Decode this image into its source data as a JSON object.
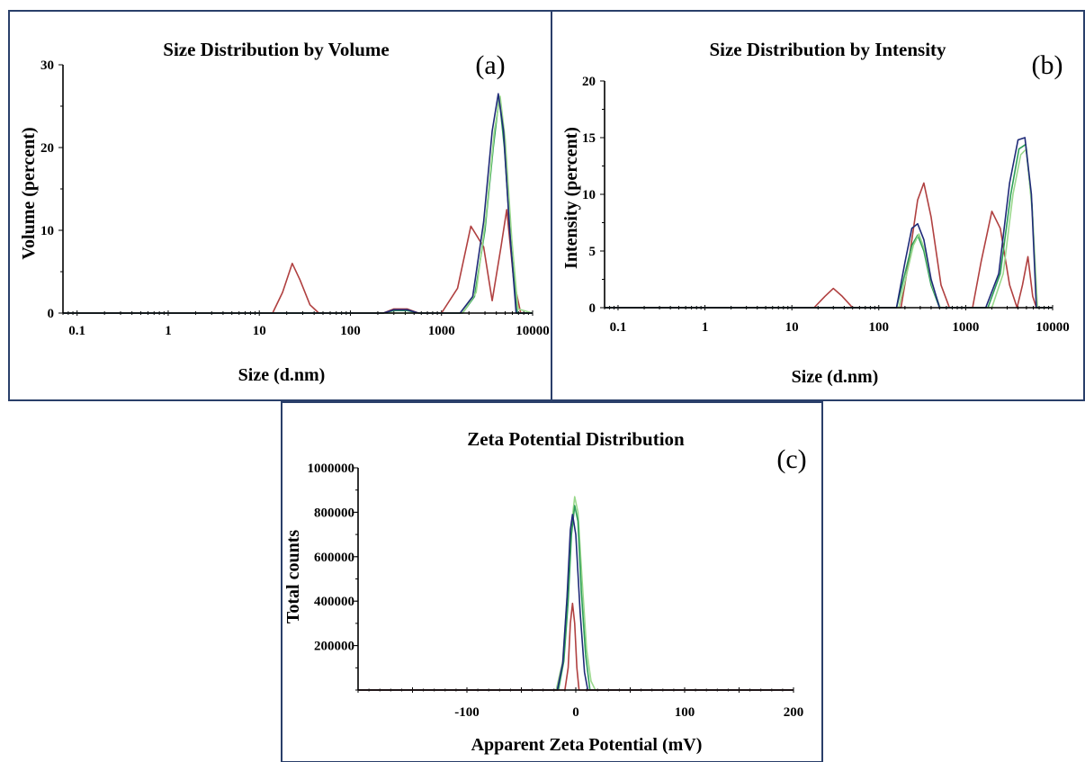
{
  "chart_data": [
    {
      "id": "a",
      "type": "line",
      "panel_label": "(a)",
      "title": "Size Distribution by Volume",
      "xlabel": "Size (d.nm)",
      "ylabel": "Volume  (percent)",
      "xscale": "log",
      "xlim": [
        0.07,
        10000
      ],
      "ylim": [
        0,
        30
      ],
      "xticks": [
        {
          "v": 0.1,
          "label": "0.1"
        },
        {
          "v": 1,
          "label": "1"
        },
        {
          "v": 10,
          "label": "10"
        },
        {
          "v": 100,
          "label": "100"
        },
        {
          "v": 1000,
          "label": "1000"
        },
        {
          "v": 10000,
          "label": "10000"
        }
      ],
      "yticks": [
        {
          "v": 0,
          "label": "0"
        },
        {
          "v": 10,
          "label": "10"
        },
        {
          "v": 20,
          "label": "20"
        },
        {
          "v": 30,
          "label": "30"
        }
      ],
      "series": [
        {
          "color": "#b04040",
          "points": [
            [
              0.07,
              0
            ],
            [
              14,
              0
            ],
            [
              18,
              2.5
            ],
            [
              23,
              6
            ],
            [
              28,
              4
            ],
            [
              36,
              1
            ],
            [
              45,
              0
            ],
            [
              230,
              0
            ],
            [
              300,
              0.5
            ],
            [
              420,
              0.5
            ],
            [
              560,
              0
            ],
            [
              1000,
              0
            ],
            [
              1500,
              3
            ],
            [
              2100,
              10.5
            ],
            [
              2900,
              8
            ],
            [
              3600,
              1.5
            ],
            [
              4500,
              8
            ],
            [
              5200,
              12.5
            ],
            [
              6200,
              4
            ],
            [
              7400,
              0
            ],
            [
              10000,
              0
            ]
          ]
        },
        {
          "color": "#2e9e58",
          "points": [
            [
              0.07,
              0
            ],
            [
              230,
              0
            ],
            [
              300,
              0.3
            ],
            [
              420,
              0.3
            ],
            [
              560,
              0
            ],
            [
              1700,
              0
            ],
            [
              2300,
              2
            ],
            [
              3000,
              10
            ],
            [
              3700,
              20
            ],
            [
              4300,
              26
            ],
            [
              4900,
              20
            ],
            [
              5800,
              8
            ],
            [
              6800,
              0
            ],
            [
              10000,
              0
            ]
          ]
        },
        {
          "color": "#9ad88c",
          "points": [
            [
              0.07,
              0
            ],
            [
              1700,
              0
            ],
            [
              2400,
              2.5
            ],
            [
              3100,
              12
            ],
            [
              3800,
              22
            ],
            [
              4400,
              26.2
            ],
            [
              5000,
              21
            ],
            [
              5900,
              9
            ],
            [
              6900,
              0.5
            ],
            [
              10000,
              0
            ]
          ]
        },
        {
          "color": "#1f2a78",
          "points": [
            [
              0.07,
              0
            ],
            [
              230,
              0
            ],
            [
              300,
              0.4
            ],
            [
              420,
              0.4
            ],
            [
              560,
              0
            ],
            [
              1600,
              0
            ],
            [
              2200,
              2
            ],
            [
              2900,
              11
            ],
            [
              3600,
              22
            ],
            [
              4200,
              26.5
            ],
            [
              4800,
              22
            ],
            [
              5600,
              10
            ],
            [
              6600,
              0
            ],
            [
              10000,
              0
            ]
          ]
        }
      ]
    },
    {
      "id": "b",
      "type": "line",
      "panel_label": "(b)",
      "title": "Size Distribution by Intensity",
      "xlabel": "Size (d.nm)",
      "ylabel": "Intensity  (percent)",
      "xscale": "log",
      "xlim": [
        0.07,
        10000
      ],
      "ylim": [
        0,
        20
      ],
      "xticks": [
        {
          "v": 0.1,
          "label": "0.1"
        },
        {
          "v": 1,
          "label": "1"
        },
        {
          "v": 10,
          "label": "10"
        },
        {
          "v": 100,
          "label": "100"
        },
        {
          "v": 1000,
          "label": "1000"
        },
        {
          "v": 10000,
          "label": "10000"
        }
      ],
      "yticks": [
        {
          "v": 0,
          "label": "0"
        },
        {
          "v": 5,
          "label": "5"
        },
        {
          "v": 10,
          "label": "10"
        },
        {
          "v": 15,
          "label": "15"
        },
        {
          "v": 20,
          "label": "20"
        }
      ],
      "series": [
        {
          "color": "#b04040",
          "points": [
            [
              0.07,
              0
            ],
            [
              18,
              0
            ],
            [
              24,
              1
            ],
            [
              30,
              1.7
            ],
            [
              38,
              1
            ],
            [
              50,
              0
            ],
            [
              180,
              0
            ],
            [
              220,
              4
            ],
            [
              280,
              9.5
            ],
            [
              330,
              11
            ],
            [
              400,
              8
            ],
            [
              520,
              2
            ],
            [
              650,
              0
            ],
            [
              1200,
              0
            ],
            [
              1500,
              4
            ],
            [
              2000,
              8.5
            ],
            [
              2500,
              7
            ],
            [
              3200,
              2
            ],
            [
              3900,
              0
            ],
            [
              4500,
              2
            ],
            [
              5200,
              4.5
            ],
            [
              5900,
              1
            ],
            [
              6500,
              0
            ],
            [
              10000,
              0
            ]
          ]
        },
        {
          "color": "#2e9e58",
          "points": [
            [
              0.07,
              0
            ],
            [
              160,
              0
            ],
            [
              200,
              3
            ],
            [
              240,
              5.5
            ],
            [
              280,
              6.4
            ],
            [
              330,
              5
            ],
            [
              400,
              2
            ],
            [
              500,
              0
            ],
            [
              1800,
              0
            ],
            [
              2500,
              3
            ],
            [
              3300,
              10
            ],
            [
              4100,
              14
            ],
            [
              4900,
              14.4
            ],
            [
              5800,
              9
            ],
            [
              6600,
              0
            ],
            [
              10000,
              0
            ]
          ]
        },
        {
          "color": "#9ad88c",
          "points": [
            [
              0.07,
              0
            ],
            [
              170,
              0
            ],
            [
              210,
              3
            ],
            [
              250,
              5.5
            ],
            [
              290,
              6.5
            ],
            [
              340,
              5
            ],
            [
              410,
              2
            ],
            [
              510,
              0
            ],
            [
              2000,
              0
            ],
            [
              2700,
              3
            ],
            [
              3500,
              10
            ],
            [
              4300,
              13.5
            ],
            [
              5000,
              14
            ],
            [
              5900,
              8
            ],
            [
              6700,
              0
            ],
            [
              10000,
              0
            ]
          ]
        },
        {
          "color": "#1f2a78",
          "points": [
            [
              0.07,
              0
            ],
            [
              160,
              0
            ],
            [
              200,
              4
            ],
            [
              240,
              7
            ],
            [
              280,
              7.4
            ],
            [
              330,
              6
            ],
            [
              400,
              2.5
            ],
            [
              500,
              0
            ],
            [
              1700,
              0
            ],
            [
              2400,
              3
            ],
            [
              3200,
              11
            ],
            [
              4000,
              14.8
            ],
            [
              4800,
              15
            ],
            [
              5700,
              10
            ],
            [
              6500,
              0
            ],
            [
              10000,
              0
            ]
          ]
        }
      ]
    },
    {
      "id": "c",
      "type": "line",
      "panel_label": "(c)",
      "title": "Zeta Potential Distribution",
      "xlabel": "Apparent  Zeta Potential (mV)",
      "ylabel": "Total counts",
      "xscale": "linear",
      "xlim": [
        -200,
        200
      ],
      "ylim": [
        0,
        1000000
      ],
      "xticks": [
        {
          "v": -100,
          "label": "-100"
        },
        {
          "v": 0,
          "label": "0"
        },
        {
          "v": 100,
          "label": "100"
        },
        {
          "v": 200,
          "label": "200"
        }
      ],
      "yticks": [
        {
          "v": 200000,
          "label": "200000"
        },
        {
          "v": 400000,
          "label": "400000"
        },
        {
          "v": 600000,
          "label": "600000"
        },
        {
          "v": 800000,
          "label": "800000"
        },
        {
          "v": 1000000,
          "label": "1000000"
        }
      ],
      "series": [
        {
          "color": "#9ad88c",
          "points": [
            [
              -200,
              0
            ],
            [
              -18,
              0
            ],
            [
              -12,
              130000
            ],
            [
              -8,
              420000
            ],
            [
              -4,
              740000
            ],
            [
              -1,
              870000
            ],
            [
              2,
              800000
            ],
            [
              6,
              480000
            ],
            [
              10,
              180000
            ],
            [
              14,
              40000
            ],
            [
              18,
              0
            ],
            [
              200,
              0
            ]
          ]
        },
        {
          "color": "#2e9e58",
          "points": [
            [
              -200,
              0
            ],
            [
              -16,
              0
            ],
            [
              -11,
              130000
            ],
            [
              -7,
              400000
            ],
            [
              -4,
              700000
            ],
            [
              -1,
              830000
            ],
            [
              2,
              760000
            ],
            [
              5,
              450000
            ],
            [
              9,
              160000
            ],
            [
              13,
              0
            ],
            [
              200,
              0
            ]
          ]
        },
        {
          "color": "#1f2a78",
          "points": [
            [
              -200,
              0
            ],
            [
              -17,
              0
            ],
            [
              -12,
              120000
            ],
            [
              -8,
              420000
            ],
            [
              -5,
              720000
            ],
            [
              -3,
              790000
            ],
            [
              0,
              700000
            ],
            [
              4,
              350000
            ],
            [
              8,
              80000
            ],
            [
              11,
              0
            ],
            [
              200,
              0
            ]
          ]
        },
        {
          "color": "#b04040",
          "points": [
            [
              -200,
              0
            ],
            [
              -10,
              0
            ],
            [
              -7,
              100000
            ],
            [
              -5,
              300000
            ],
            [
              -3,
              390000
            ],
            [
              -1,
              300000
            ],
            [
              1,
              100000
            ],
            [
              3,
              0
            ],
            [
              200,
              0
            ]
          ]
        }
      ]
    }
  ]
}
